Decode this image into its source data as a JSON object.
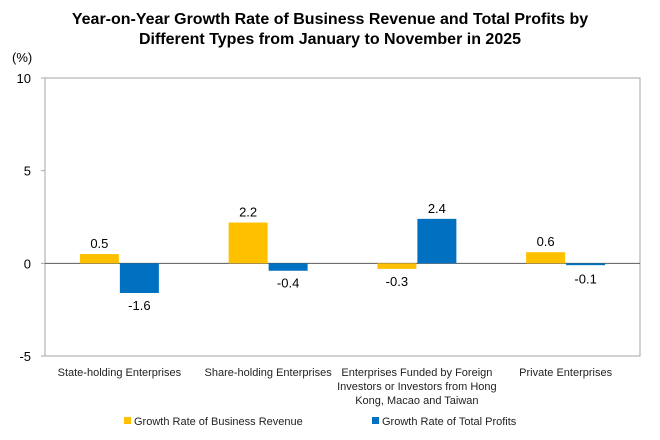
{
  "chart_data": {
    "type": "bar",
    "title_lines": [
      "Year-on-Year Growth Rate of Business Revenue and Total Profits by",
      "Different Types from January to November in 2025"
    ],
    "ylabel": "(%)",
    "xlabel": "",
    "ylim": [
      -5,
      10
    ],
    "yticks": [
      -5,
      0,
      5,
      10
    ],
    "grid": false,
    "legend_position": "bottom",
    "categories": [
      [
        "State-holding Enterprises"
      ],
      [
        "Share-holding Enterprises"
      ],
      [
        "Enterprises Funded by Foreign",
        "Investors or Investors from Hong",
        "Kong, Macao and Taiwan"
      ],
      [
        "Private Enterprises"
      ]
    ],
    "series": [
      {
        "name": "Growth Rate of Business Revenue",
        "color": "#FFC000",
        "values": [
          0.5,
          2.2,
          -0.3,
          0.6
        ]
      },
      {
        "name": "Growth Rate of Total Profits",
        "color": "#0070C0",
        "values": [
          -1.6,
          -0.4,
          2.4,
          -0.1
        ]
      }
    ]
  }
}
